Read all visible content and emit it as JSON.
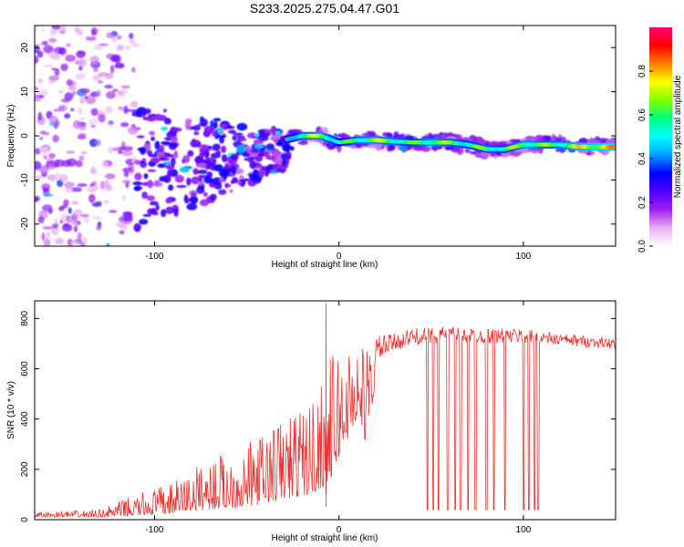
{
  "title": "S233.2025.275.04.47.G01",
  "chart_data": [
    {
      "type": "heatmap",
      "id": "spectrogram",
      "xlabel": "Height of straight line (km)",
      "ylabel": "Frequency (Hz)",
      "xlim": [
        -165,
        150
      ],
      "ylim": [
        -25,
        25
      ],
      "xticks": [
        -100,
        0,
        100
      ],
      "yticks": [
        -20,
        -10,
        0,
        10,
        20
      ],
      "colorbar": {
        "label": "Normalized spectral amplitude",
        "range": [
          0,
          1
        ],
        "ticks": [
          "0.0",
          "0.2",
          "0.4",
          "0.6",
          "0.8"
        ],
        "tick_values": [
          0.0,
          0.2,
          0.4,
          0.6,
          0.8
        ],
        "colors": [
          "#ffffff",
          "#e8b0f0",
          "#a020f0",
          "#5000ff",
          "#0000ff",
          "#00a0ff",
          "#00ffff",
          "#00ff80",
          "#80ff00",
          "#ffff00",
          "#ff8000",
          "#ff0000",
          "#ff0080"
        ]
      },
      "ridge": {
        "description": "dominant frequency track",
        "x": [
          -30,
          -20,
          -10,
          0,
          10,
          20,
          40,
          50,
          60,
          70,
          80,
          90,
          100,
          110,
          120,
          130,
          140,
          150
        ],
        "freq_hz": [
          -1.0,
          0.0,
          0.0,
          -1.5,
          -1.0,
          -1.0,
          -1.5,
          -1.5,
          -1.5,
          -2.0,
          -3.0,
          -3.0,
          -2.0,
          -2.0,
          -2.0,
          -2.5,
          -2.5,
          -2.5
        ],
        "amplitude": [
          0.45,
          0.7,
          0.75,
          0.6,
          0.7,
          0.75,
          0.65,
          0.75,
          0.7,
          0.65,
          0.7,
          0.65,
          0.75,
          0.7,
          0.7,
          0.8,
          0.85,
          0.85
        ]
      }
    },
    {
      "type": "line",
      "id": "snr",
      "xlabel": "Height of straight line (km)",
      "ylabel": "SNR (10 * v/v)",
      "xlim": [
        -165,
        150
      ],
      "ylim": [
        0,
        870
      ],
      "xticks": [
        -100,
        0,
        100
      ],
      "yticks": [
        0,
        200,
        400,
        600,
        800
      ],
      "color": "#f03030",
      "envelope": {
        "x": [
          -165,
          -130,
          -110,
          -90,
          -70,
          -50,
          -30,
          -15,
          -5,
          0,
          10,
          15,
          20,
          30,
          40,
          60,
          80,
          100,
          120,
          150
        ],
        "low": [
          10,
          10,
          15,
          25,
          40,
          50,
          80,
          100,
          150,
          250,
          400,
          300,
          550,
          620,
          650,
          660,
          660,
          660,
          660,
          650
        ],
        "high": [
          30,
          40,
          100,
          150,
          250,
          300,
          420,
          480,
          650,
          680,
          720,
          700,
          730,
          740,
          760,
          770,
          760,
          760,
          740,
          720
        ]
      },
      "peak": {
        "x": -7,
        "value": 860
      },
      "dropouts": {
        "x": [
          48,
          51,
          54,
          59,
          63,
          66,
          70,
          74,
          80,
          84,
          90,
          100,
          103,
          106,
          108
        ],
        "value": 40
      }
    }
  ]
}
